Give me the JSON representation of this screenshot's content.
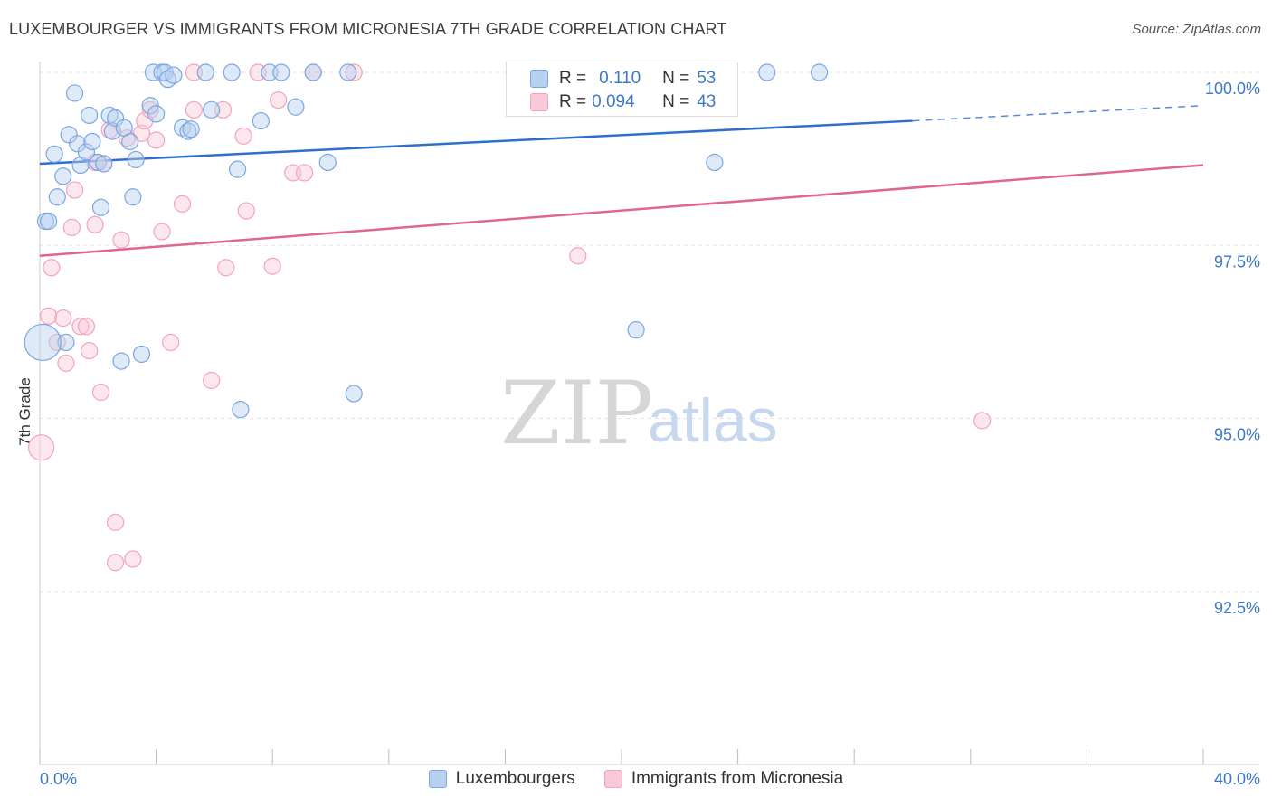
{
  "chart_data": {
    "type": "scatter",
    "title": "LUXEMBOURGER VS IMMIGRANTS FROM MICRONESIA 7TH GRADE CORRELATION CHART",
    "source": "Source: ZipAtlas.com",
    "xlabel": "",
    "ylabel": "7th Grade",
    "xlim": [
      0,
      40
    ],
    "ylim": [
      90.0,
      100.5
    ],
    "x_tick_labels": [
      "0.0%",
      "40.0%"
    ],
    "y_ticks": [
      92.5,
      95.0,
      97.5,
      100.0
    ],
    "y_tick_labels": [
      "92.5%",
      "95.0%",
      "97.5%",
      "100.0%"
    ],
    "grid": true,
    "watermark": {
      "zip": "ZIP",
      "atlas": "atlas"
    },
    "series": [
      {
        "name": "Luxembourgers",
        "color": "#7aa7e0",
        "fill": "#b9d1f0",
        "line_color": "#2f6fcb",
        "R": "0.110",
        "N": "53",
        "trend": {
          "x0": 0.0,
          "y0": 98.68,
          "x1": 30.0,
          "y1": 99.3,
          "x_end": 40.0,
          "y_end": 99.52
        },
        "points": [
          [
            0.2,
            97.85
          ],
          [
            0.3,
            97.85
          ],
          [
            0.5,
            98.82
          ],
          [
            0.6,
            98.2
          ],
          [
            0.8,
            98.5
          ],
          [
            0.9,
            96.1
          ],
          [
            1.0,
            99.1
          ],
          [
            1.2,
            99.7
          ],
          [
            1.3,
            98.97
          ],
          [
            1.4,
            98.66
          ],
          [
            1.6,
            98.85
          ],
          [
            1.7,
            99.38
          ],
          [
            1.8,
            99.0
          ],
          [
            2.0,
            98.7
          ],
          [
            2.1,
            98.05
          ],
          [
            2.2,
            98.68
          ],
          [
            2.4,
            99.38
          ],
          [
            2.5,
            99.15
          ],
          [
            2.6,
            99.34
          ],
          [
            2.8,
            95.83
          ],
          [
            3.1,
            99.0
          ],
          [
            3.2,
            98.2
          ],
          [
            3.3,
            98.74
          ],
          [
            3.5,
            95.93
          ],
          [
            3.8,
            99.52
          ],
          [
            3.9,
            100.0
          ],
          [
            4.0,
            99.4
          ],
          [
            4.2,
            100.0
          ],
          [
            4.3,
            100.0
          ],
          [
            4.4,
            99.9
          ],
          [
            4.6,
            99.96
          ],
          [
            4.9,
            99.2
          ],
          [
            5.1,
            99.15
          ],
          [
            5.2,
            99.18
          ],
          [
            5.7,
            100.0
          ],
          [
            5.9,
            99.46
          ],
          [
            6.6,
            100.0
          ],
          [
            6.8,
            98.6
          ],
          [
            6.9,
            95.13
          ],
          [
            7.6,
            99.3
          ],
          [
            7.9,
            100.0
          ],
          [
            8.3,
            100.0
          ],
          [
            8.8,
            99.5
          ],
          [
            9.4,
            100.0
          ],
          [
            9.9,
            98.7
          ],
          [
            10.6,
            100.0
          ],
          [
            10.8,
            95.36
          ],
          [
            23.2,
            98.7
          ],
          [
            25.0,
            100.0
          ],
          [
            26.8,
            100.0
          ],
          [
            20.5,
            96.28
          ],
          [
            0.1,
            96.1
          ],
          [
            2.9,
            99.2
          ]
        ],
        "point_radius": [
          9,
          9,
          9,
          9,
          9,
          9,
          9,
          9,
          9,
          9,
          9,
          9,
          9,
          9,
          9,
          9,
          9,
          9,
          9,
          9,
          9,
          9,
          9,
          9,
          9,
          9,
          9,
          9,
          9,
          9,
          9,
          9,
          9,
          9,
          9,
          9,
          9,
          9,
          9,
          9,
          9,
          9,
          9,
          9,
          9,
          9,
          9,
          9,
          9,
          9,
          9,
          20,
          9
        ]
      },
      {
        "name": "Immigrants from Micronesia",
        "color": "#f2a3bd",
        "fill": "#f8c9d8",
        "line_color": "#e0668f",
        "R": "0.094",
        "N": "43",
        "trend": {
          "x0": 0.0,
          "y0": 97.35,
          "x1": 40.0,
          "y1": 98.66
        },
        "points": [
          [
            0.3,
            96.48
          ],
          [
            0.4,
            97.18
          ],
          [
            0.6,
            96.1
          ],
          [
            0.8,
            96.45
          ],
          [
            0.9,
            95.8
          ],
          [
            1.1,
            97.76
          ],
          [
            1.2,
            98.3
          ],
          [
            1.4,
            96.33
          ],
          [
            1.6,
            96.33
          ],
          [
            1.7,
            95.98
          ],
          [
            1.9,
            97.8
          ],
          [
            1.9,
            98.7
          ],
          [
            2.1,
            95.38
          ],
          [
            2.2,
            98.68
          ],
          [
            2.4,
            99.17
          ],
          [
            2.6,
            93.5
          ],
          [
            2.6,
            92.92
          ],
          [
            2.8,
            97.58
          ],
          [
            3.0,
            99.05
          ],
          [
            3.2,
            92.97
          ],
          [
            3.5,
            99.12
          ],
          [
            3.6,
            99.3
          ],
          [
            3.8,
            99.46
          ],
          [
            4.0,
            99.02
          ],
          [
            4.2,
            97.7
          ],
          [
            4.5,
            96.1
          ],
          [
            4.9,
            98.1
          ],
          [
            5.3,
            99.46
          ],
          [
            5.3,
            100.0
          ],
          [
            5.9,
            95.55
          ],
          [
            6.3,
            99.46
          ],
          [
            6.4,
            97.18
          ],
          [
            7.0,
            99.08
          ],
          [
            7.1,
            98.0
          ],
          [
            7.5,
            100.0
          ],
          [
            8.0,
            97.2
          ],
          [
            8.2,
            99.6
          ],
          [
            8.7,
            98.55
          ],
          [
            9.1,
            98.55
          ],
          [
            9.4,
            100.0
          ],
          [
            10.8,
            100.0
          ],
          [
            18.5,
            97.35
          ],
          [
            32.4,
            94.97
          ]
        ],
        "extra_points": [
          [
            0.05,
            94.58
          ]
        ],
        "point_radius": [
          9,
          9,
          9,
          9,
          9,
          9,
          9,
          9,
          9,
          9,
          9,
          9,
          9,
          9,
          9,
          9,
          9,
          9,
          9,
          9,
          9,
          9,
          9,
          9,
          9,
          9,
          9,
          9,
          9,
          9,
          9,
          9,
          9,
          9,
          9,
          9,
          9,
          9,
          9,
          9,
          9,
          9,
          9
        ]
      }
    ]
  },
  "stats_legend": {
    "r_label": "R =",
    "n_label": "N =",
    "row1": {
      "r": "0.110",
      "n": "53"
    },
    "row2": {
      "r": "0.094",
      "n": "43"
    }
  },
  "legend": {
    "item1": "Luxembourgers",
    "item2": "Immigrants from Micronesia"
  }
}
